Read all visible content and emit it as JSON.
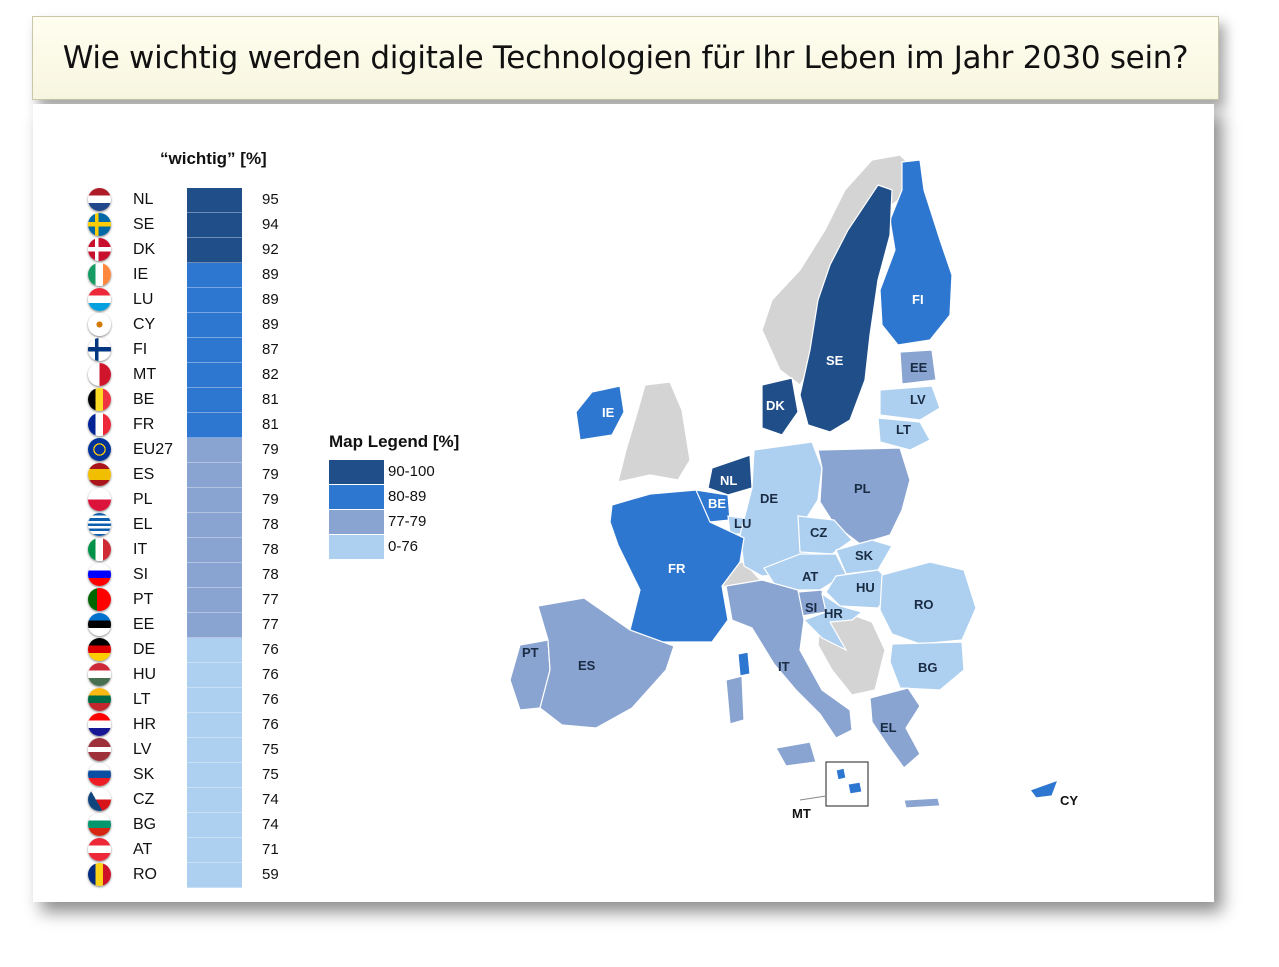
{
  "title": "Wie wichtig werden digitale Technologien für Ihr Leben im Jahr 2030 sein?",
  "column_header": "“wichtig” [%]",
  "colors": {
    "c90": "#1f4e89",
    "c80": "#2e77d0",
    "c77": "#8aa4d1",
    "c0": "#aed0f0",
    "nodata": "#d4d4d4"
  },
  "rows": [
    {
      "code": "NL",
      "value": 95,
      "band": "c90",
      "flag": "flag-nl-icon"
    },
    {
      "code": "SE",
      "value": 94,
      "band": "c90",
      "flag": "flag-se-icon"
    },
    {
      "code": "DK",
      "value": 92,
      "band": "c90",
      "flag": "flag-dk-icon"
    },
    {
      "code": "IE",
      "value": 89,
      "band": "c80",
      "flag": "flag-ie-icon"
    },
    {
      "code": "LU",
      "value": 89,
      "band": "c80",
      "flag": "flag-lu-icon"
    },
    {
      "code": "CY",
      "value": 89,
      "band": "c80",
      "flag": "flag-cy-icon"
    },
    {
      "code": "FI",
      "value": 87,
      "band": "c80",
      "flag": "flag-fi-icon"
    },
    {
      "code": "MT",
      "value": 82,
      "band": "c80",
      "flag": "flag-mt-icon"
    },
    {
      "code": "BE",
      "value": 81,
      "band": "c80",
      "flag": "flag-be-icon"
    },
    {
      "code": "FR",
      "value": 81,
      "band": "c80",
      "flag": "flag-fr-icon"
    },
    {
      "code": "EU27",
      "value": 79,
      "band": "c77",
      "flag": "flag-eu-icon"
    },
    {
      "code": "ES",
      "value": 79,
      "band": "c77",
      "flag": "flag-es-icon"
    },
    {
      "code": "PL",
      "value": 79,
      "band": "c77",
      "flag": "flag-pl-icon"
    },
    {
      "code": "EL",
      "value": 78,
      "band": "c77",
      "flag": "flag-el-icon"
    },
    {
      "code": "IT",
      "value": 78,
      "band": "c77",
      "flag": "flag-it-icon"
    },
    {
      "code": "SI",
      "value": 78,
      "band": "c77",
      "flag": "flag-si-icon"
    },
    {
      "code": "PT",
      "value": 77,
      "band": "c77",
      "flag": "flag-pt-icon"
    },
    {
      "code": "EE",
      "value": 77,
      "band": "c77",
      "flag": "flag-ee-icon"
    },
    {
      "code": "DE",
      "value": 76,
      "band": "c0",
      "flag": "flag-de-icon"
    },
    {
      "code": "HU",
      "value": 76,
      "band": "c0",
      "flag": "flag-hu-icon"
    },
    {
      "code": "LT",
      "value": 76,
      "band": "c0",
      "flag": "flag-lt-icon"
    },
    {
      "code": "HR",
      "value": 76,
      "band": "c0",
      "flag": "flag-hr-icon"
    },
    {
      "code": "LV",
      "value": 75,
      "band": "c0",
      "flag": "flag-lv-icon"
    },
    {
      "code": "SK",
      "value": 75,
      "band": "c0",
      "flag": "flag-sk-icon"
    },
    {
      "code": "CZ",
      "value": 74,
      "band": "c0",
      "flag": "flag-cz-icon"
    },
    {
      "code": "BG",
      "value": 74,
      "band": "c0",
      "flag": "flag-bg-icon"
    },
    {
      "code": "AT",
      "value": 71,
      "band": "c0",
      "flag": "flag-at-icon"
    },
    {
      "code": "RO",
      "value": 59,
      "band": "c0",
      "flag": "flag-ro-icon"
    }
  ],
  "legend": {
    "title": "Map Legend [%]",
    "items": [
      {
        "label": "90-100",
        "band": "c90"
      },
      {
        "label": "80-89",
        "band": "c80"
      },
      {
        "label": "77-79",
        "band": "c77"
      },
      {
        "label": "0-76",
        "band": "c0"
      }
    ]
  },
  "map_labels": [
    "FI",
    "SE",
    "EE",
    "LV",
    "LT",
    "IE",
    "DK",
    "NL",
    "BE",
    "LU",
    "DE",
    "PL",
    "CZ",
    "SK",
    "AT",
    "HU",
    "SI",
    "HR",
    "RO",
    "FR",
    "IT",
    "BG",
    "PT",
    "ES",
    "EL",
    "MT",
    "CY"
  ]
}
